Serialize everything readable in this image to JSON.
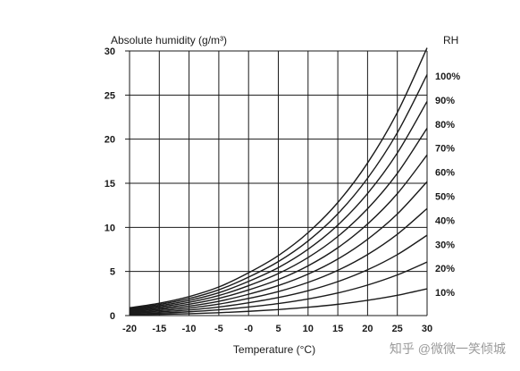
{
  "chart_data": {
    "type": "line",
    "title": "",
    "ylabel": "Absolute humidity (g/m³)",
    "xlabel": "Temperature (°C)",
    "legend_title": "RH",
    "xlim": [
      -20,
      30
    ],
    "ylim": [
      0,
      30
    ],
    "x_ticks": [
      -20,
      -15,
      -10,
      -5,
      0,
      5,
      10,
      15,
      20,
      25,
      30
    ],
    "x_tick_labels": [
      "-20",
      "-15",
      "-10",
      "-5",
      "-0",
      "5",
      "10",
      "15",
      "20",
      "25",
      "30"
    ],
    "y_ticks": [
      0,
      5,
      10,
      15,
      20,
      25,
      30
    ],
    "y_tick_labels": [
      "0",
      "5",
      "10",
      "15",
      "20",
      "25",
      "30"
    ],
    "grid": true,
    "legend_placement": "right end of each curve",
    "x": [
      -20,
      -15,
      -10,
      -5,
      0,
      5,
      10,
      15,
      20,
      25,
      30
    ],
    "series": [
      {
        "name": "10%",
        "values": [
          0.09,
          0.14,
          0.21,
          0.32,
          0.48,
          0.68,
          0.94,
          1.28,
          1.73,
          2.3,
          3.04
        ]
      },
      {
        "name": "20%",
        "values": [
          0.18,
          0.28,
          0.43,
          0.65,
          0.97,
          1.36,
          1.88,
          2.56,
          3.46,
          4.61,
          6.07
        ]
      },
      {
        "name": "30%",
        "values": [
          0.27,
          0.42,
          0.64,
          0.97,
          1.45,
          2.04,
          2.82,
          3.85,
          5.19,
          6.91,
          9.11
        ]
      },
      {
        "name": "40%",
        "values": [
          0.35,
          0.56,
          0.86,
          1.3,
          1.94,
          2.72,
          3.76,
          5.13,
          6.92,
          9.22,
          12.14
        ]
      },
      {
        "name": "50%",
        "values": [
          0.44,
          0.7,
          1.07,
          1.62,
          2.42,
          3.4,
          4.7,
          6.41,
          8.65,
          11.52,
          15.18
        ]
      },
      {
        "name": "60%",
        "values": [
          0.53,
          0.84,
          1.29,
          1.95,
          2.91,
          4.08,
          5.64,
          7.69,
          10.38,
          13.82,
          18.21
        ]
      },
      {
        "name": "70%",
        "values": [
          0.62,
          0.98,
          1.5,
          2.27,
          3.39,
          4.76,
          6.58,
          8.97,
          12.11,
          16.12,
          21.25
        ]
      },
      {
        "name": "80%",
        "values": [
          0.71,
          1.12,
          1.72,
          2.59,
          3.88,
          5.44,
          7.52,
          10.26,
          13.84,
          18.43,
          24.28
        ]
      },
      {
        "name": "90%",
        "values": [
          0.8,
          1.26,
          1.93,
          2.92,
          4.36,
          6.12,
          8.46,
          11.54,
          15.57,
          20.73,
          27.32
        ]
      },
      {
        "name": "100%",
        "values": [
          0.89,
          1.4,
          2.15,
          3.24,
          4.85,
          6.8,
          9.4,
          12.82,
          17.3,
          23.03,
          30.35
        ]
      }
    ]
  },
  "watermark": "知乎 @微微一笑倾城",
  "colors": {
    "line": "#1a1a1a",
    "grid": "#1a1a1a",
    "watermark": "#9a9a9a",
    "background": "#ffffff"
  }
}
